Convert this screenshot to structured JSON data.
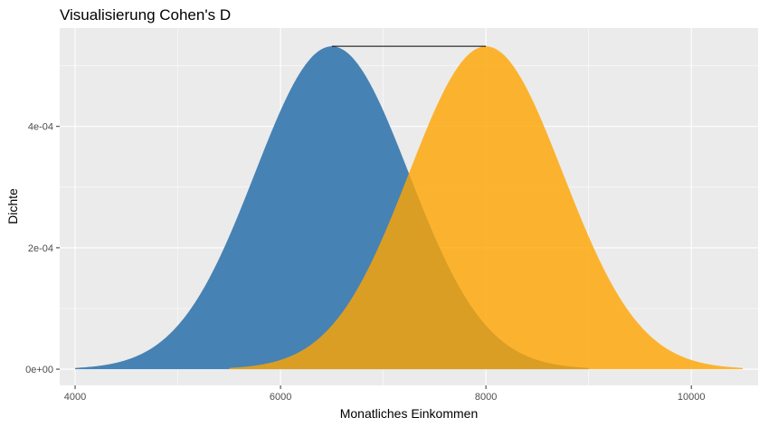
{
  "chart_data": {
    "type": "area",
    "title": "Visualisierung Cohen's D",
    "xlabel": "Monatliches Einkommen",
    "ylabel": "Dichte",
    "xlim": [
      3850,
      10650
    ],
    "ylim": [
      -2.67e-05,
      0.000562
    ],
    "x_ticks": [
      4000,
      6000,
      8000,
      10000
    ],
    "x_tick_labels": [
      "4000",
      "6000",
      "8000",
      "10000"
    ],
    "y_ticks": [
      0,
      0.0002,
      0.0004
    ],
    "y_tick_labels": [
      "0e+00",
      "2e-04",
      "4e-04"
    ],
    "grid": true,
    "legend": "none",
    "series": [
      {
        "mean": 6500,
        "sd": 750,
        "x_range": [
          4000,
          9000
        ],
        "color": "#4682B4",
        "opacity": 1.0
      },
      {
        "mean": 8000,
        "sd": 750,
        "x_range": [
          5500,
          10500
        ],
        "color": "#FFA500",
        "opacity": 0.8
      }
    ],
    "segment": {
      "x": [
        6500,
        8000
      ],
      "y": 0.000532
    }
  }
}
